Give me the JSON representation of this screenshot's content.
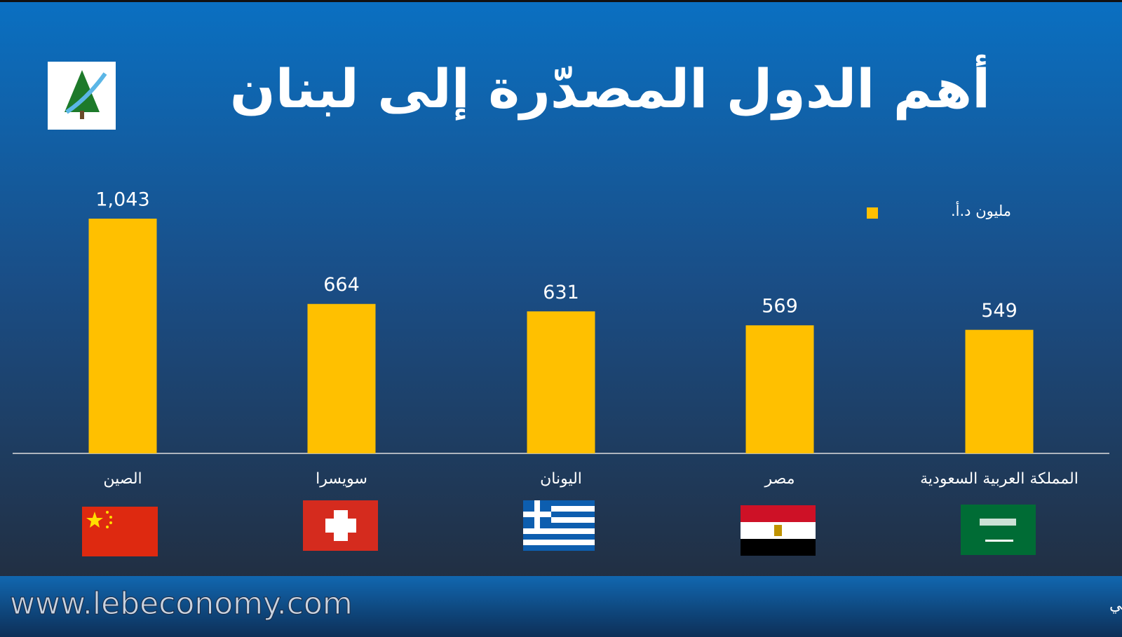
{
  "chart_data": {
    "type": "bar",
    "title": "أهم الدول المصدّرة إلى لبنان",
    "categories": [
      "الصين",
      "سويسرا",
      "اليونان",
      "مصر",
      "المملكة العربية السعودية"
    ],
    "series": [
      {
        "name": "مليون د.أ.",
        "color": "#ffc000",
        "values": [
          1043,
          664,
          631,
          569,
          549
        ],
        "value_labels": [
          "1,043",
          "664",
          "631",
          "569",
          "549"
        ]
      }
    ],
    "source": "المصدر: إدارة الجمارك اللبنانية، وحدة الأبحاث الإقتصادية في بنك الإعتماد اللبناني",
    "website": "www.lebeconomy.com"
  }
}
